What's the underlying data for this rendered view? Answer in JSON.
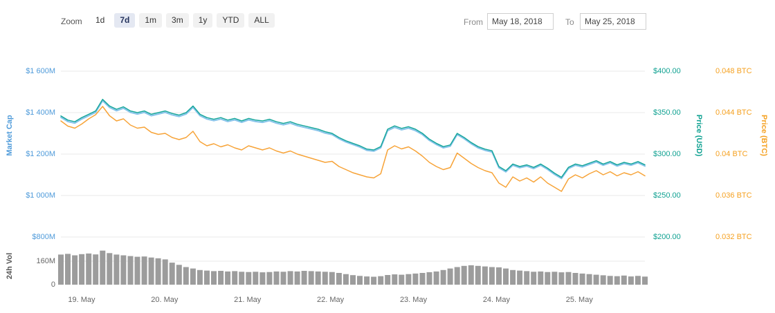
{
  "toolbar": {
    "zoom_label": "Zoom",
    "buttons": [
      {
        "label": "1d",
        "selected": false
      },
      {
        "label": "7d",
        "selected": true
      },
      {
        "label": "1m",
        "selected": false
      },
      {
        "label": "3m",
        "selected": false
      },
      {
        "label": "1y",
        "selected": false
      },
      {
        "label": "YTD",
        "selected": false
      },
      {
        "label": "ALL",
        "selected": false
      }
    ],
    "from_label": "From",
    "from_value": "May 18, 2018",
    "to_label": "To",
    "to_value": "May 25, 2018"
  },
  "colors": {
    "grid": "#e8e8e8",
    "selected_button_bg": "#e4e8f2",
    "market_cap_axis": "#4f9bda",
    "price_usd_axis": "#0fa191",
    "price_btc_axis": "#f5a01f",
    "volume_axis": "#666666"
  },
  "chart_data": {
    "type": "line",
    "title": "",
    "x_unit": "date (May 2018), 7-day window",
    "x_start_day": 18.75,
    "x_end_day": 25.79,
    "x_tick_days": [
      19,
      20,
      21,
      22,
      23,
      24,
      25
    ],
    "x_tick_labels": [
      "19. May",
      "20. May",
      "21. May",
      "22. May",
      "23. May",
      "24. May",
      "25. May"
    ],
    "grid": "horizontal only",
    "legend": "none",
    "axes": {
      "market_cap": {
        "label": "Market Cap",
        "side": "left",
        "color": "#4f9bda",
        "range": [
          800,
          1600
        ],
        "ticks": [
          "$1 600M",
          "$1 400M",
          "$1 200M",
          "$1 000M",
          "$800M"
        ]
      },
      "price_usd": {
        "label": "Price (USD)",
        "side": "right",
        "color": "#0fa191",
        "range": [
          200,
          400
        ],
        "ticks": [
          "$400.00",
          "$350.00",
          "$300.00",
          "$250.00",
          "$200.00"
        ]
      },
      "price_btc": {
        "label": "Price (BTC)",
        "side": "far-right",
        "color": "#f5a01f",
        "range": [
          0.032,
          0.048
        ],
        "ticks": [
          "0.048 BTC",
          "0.044 BTC",
          "0.04 BTC",
          "0.036 BTC",
          "0.032 BTC"
        ]
      },
      "volume": {
        "label": "24h Vol",
        "side": "left-bottom",
        "color": "#666666",
        "range": [
          0,
          160
        ],
        "ticks": [
          "160M",
          "0"
        ]
      }
    },
    "series": [
      {
        "name": "Market Cap",
        "unit": "$M",
        "color": "#86c3ea",
        "width": 2,
        "values": [
          1377,
          1357,
          1349,
          1369,
          1385,
          1401,
          1457,
          1425,
          1409,
          1421,
          1401,
          1393,
          1401,
          1385,
          1393,
          1401,
          1389,
          1381,
          1393,
          1425,
          1385,
          1369,
          1361,
          1369,
          1357,
          1365,
          1353,
          1365,
          1357,
          1353,
          1361,
          1349,
          1341,
          1349,
          1337,
          1329,
          1321,
          1313,
          1301,
          1294,
          1274,
          1258,
          1246,
          1234,
          1218,
          1214,
          1230,
          1313,
          1329,
          1317,
          1325,
          1313,
          1294,
          1266,
          1246,
          1230,
          1238,
          1294,
          1274,
          1250,
          1230,
          1218,
          1210,
          1134,
          1114,
          1146,
          1134,
          1142,
          1130,
          1146,
          1126,
          1102,
          1082,
          1130,
          1146,
          1138,
          1150,
          1162,
          1146,
          1158,
          1142,
          1154,
          1146,
          1158,
          1142
        ]
      },
      {
        "name": "Price (USD)",
        "unit": "$",
        "color": "#17a79b",
        "width": 1.5,
        "values": [
          346,
          341,
          339,
          344,
          348,
          352,
          366,
          358,
          354,
          357,
          352,
          350,
          352,
          348,
          350,
          352,
          349,
          347,
          350,
          358,
          348,
          344,
          342,
          344,
          341,
          343,
          340,
          343,
          341,
          340,
          342,
          339,
          337,
          339,
          336,
          334,
          332,
          330,
          327,
          325,
          320,
          316,
          313,
          310,
          306,
          305,
          309,
          330,
          334,
          331,
          333,
          330,
          325,
          318,
          313,
          309,
          311,
          325,
          320,
          314,
          309,
          306,
          304,
          285,
          280,
          288,
          285,
          287,
          284,
          288,
          283,
          277,
          272,
          284,
          288,
          286,
          289,
          292,
          288,
          291,
          287,
          290,
          288,
          291,
          287
        ]
      },
      {
        "name": "Price (BTC)",
        "unit": "BTC",
        "color": "#f7a337",
        "width": 1.5,
        "values": [
          0.0432,
          0.0427,
          0.0425,
          0.0429,
          0.0434,
          0.0438,
          0.0446,
          0.0437,
          0.0432,
          0.0434,
          0.0428,
          0.0425,
          0.0426,
          0.0421,
          0.0419,
          0.042,
          0.0416,
          0.0414,
          0.0416,
          0.0422,
          0.0412,
          0.0408,
          0.041,
          0.0407,
          0.0409,
          0.0406,
          0.0404,
          0.0408,
          0.0406,
          0.0404,
          0.0406,
          0.0403,
          0.0401,
          0.0403,
          0.04,
          0.0398,
          0.0396,
          0.0394,
          0.0392,
          0.0393,
          0.0388,
          0.0385,
          0.0382,
          0.038,
          0.0378,
          0.0377,
          0.0381,
          0.0404,
          0.0408,
          0.0405,
          0.0407,
          0.0403,
          0.0398,
          0.0392,
          0.0388,
          0.0385,
          0.0387,
          0.0401,
          0.0396,
          0.0391,
          0.0387,
          0.0384,
          0.0382,
          0.0372,
          0.0368,
          0.0378,
          0.0374,
          0.0377,
          0.0373,
          0.0378,
          0.0372,
          0.0368,
          0.0364,
          0.0376,
          0.038,
          0.0377,
          0.0381,
          0.0384,
          0.038,
          0.0383,
          0.0379,
          0.0382,
          0.038,
          0.0383,
          0.0379
        ]
      },
      {
        "name": "24h Vol",
        "unit": "$M",
        "type": "bar",
        "color": "#9c9c9c",
        "values": [
          205,
          210,
          200,
          208,
          212,
          206,
          232,
          215,
          205,
          200,
          195,
          190,
          192,
          185,
          180,
          172,
          150,
          135,
          120,
          110,
          100,
          96,
          92,
          94,
          90,
          92,
          88,
          86,
          88,
          84,
          86,
          90,
          88,
          92,
          90,
          94,
          92,
          90,
          88,
          86,
          80,
          72,
          65,
          60,
          56,
          54,
          58,
          66,
          70,
          68,
          72,
          76,
          80,
          85,
          90,
          100,
          110,
          120,
          128,
          132,
          128,
          124,
          120,
          118,
          110,
          100,
          96,
          92,
          88,
          90,
          86,
          88,
          84,
          86,
          80,
          76,
          72,
          68,
          64,
          60,
          58,
          62,
          56,
          60,
          55
        ]
      }
    ]
  }
}
